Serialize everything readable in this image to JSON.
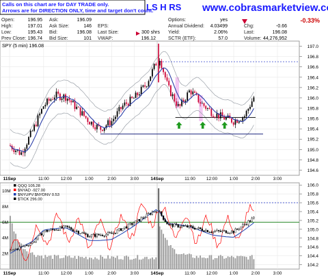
{
  "header": {
    "notice_line1": "Calls on this chart are for DAY TRADE only.",
    "notice_line2": "Arrows are for DIRECTION ONLY, time and target don't count.",
    "ticker_fragment": "LS H RS",
    "site_url": "www.cobrasmarketview.com",
    "change_percent": "-0.33%",
    "quote_fields": [
      {
        "label": "Open:",
        "value": "196.95"
      },
      {
        "label": "High:",
        "value": "197.01"
      },
      {
        "label": "Low:",
        "value": "195.43"
      },
      {
        "label": "Prev Close:",
        "value": "196.74"
      },
      {
        "label": "Ask:",
        "value": "196.09"
      },
      {
        "label": "Ask Size:",
        "value": "146"
      },
      {
        "label": "Bid:",
        "value": "196.08"
      },
      {
        "label": "Bid Size:",
        "value": "101"
      },
      {
        "label": "EPS:",
        "value": ""
      },
      {
        "label": "Last Size:",
        "value": "300 shrs"
      },
      {
        "label": "VWAP:",
        "value": "196.12"
      },
      {
        "label": "Options:",
        "value": "yes"
      },
      {
        "label": "Annual Dividend:",
        "value": "4.03499"
      },
      {
        "label": "Yield:",
        "value": "2.06%"
      },
      {
        "label": "SCTR (ETF):",
        "value": "57.0"
      },
      {
        "label": "Chg:",
        "value": "-0.66"
      },
      {
        "label": "Last:",
        "value": "196.08"
      },
      {
        "label": "Volume:",
        "value": "44,276,952"
      }
    ]
  },
  "colors": {
    "up_candle": "#000000",
    "down_candle": "#cc0033",
    "ma_line": "#2b3ea8",
    "band_line": "#9aa0a8",
    "support_line": "#1a237e",
    "resistance_dash": "#3344cc",
    "highlight": "#f2c6f2",
    "arrow": "#1e9a1e",
    "qqq_line": "#000000",
    "nyad_line": "#ff0000",
    "nyup_line": "#1a3eb0",
    "ref_line": "#2e8b2e",
    "volume_bar": "#9a9a9a",
    "red_text": "#cc0000"
  },
  "chart_data": [
    {
      "type": "line",
      "title": "SPY (5 min) 196.08",
      "x_tick_labels": [
        "11Sep",
        "11:00",
        "12:00",
        "1:00",
        "2:00",
        "3:00",
        "14Sep",
        "11:00",
        "12:00",
        "1:00",
        "2:00",
        "3:00"
      ],
      "y_tick_labels": [
        "194.6",
        "194.8",
        "195.0",
        "195.2",
        "195.4",
        "195.6",
        "195.8",
        "196.0",
        "196.2",
        "196.4",
        "196.6",
        "196.8",
        "197.0"
      ],
      "ylim": [
        194.5,
        197.1
      ],
      "support_level": 195.3,
      "resistance_level": 196.7,
      "arrow_times": [
        "14Sep 10:30",
        "14Sep 11:35",
        "14Sep 12:35"
      ],
      "close_series": [
        {
          "t": "11Sep 09:30",
          "v": 195.08
        },
        {
          "t": "11Sep 10:00",
          "v": 194.92
        },
        {
          "t": "11Sep 10:30",
          "v": 195.35
        },
        {
          "t": "11Sep 11:00",
          "v": 195.85
        },
        {
          "t": "11Sep 11:30",
          "v": 196.05
        },
        {
          "t": "11Sep 12:00",
          "v": 196.02
        },
        {
          "t": "11Sep 12:30",
          "v": 195.78
        },
        {
          "t": "11Sep 13:00",
          "v": 195.55
        },
        {
          "t": "11Sep 13:30",
          "v": 195.4
        },
        {
          "t": "11Sep 14:00",
          "v": 195.55
        },
        {
          "t": "11Sep 14:30",
          "v": 195.85
        },
        {
          "t": "11Sep 15:00",
          "v": 196.0
        },
        {
          "t": "11Sep 15:30",
          "v": 196.25
        },
        {
          "t": "11Sep 16:00",
          "v": 196.72
        },
        {
          "t": "14Sep 09:30",
          "v": 196.95
        },
        {
          "t": "14Sep 10:00",
          "v": 196.2
        },
        {
          "t": "14Sep 10:30",
          "v": 195.8
        },
        {
          "t": "14Sep 11:00",
          "v": 196.15
        },
        {
          "t": "14Sep 11:30",
          "v": 195.9
        },
        {
          "t": "14Sep 12:00",
          "v": 195.72
        },
        {
          "t": "14Sep 12:30",
          "v": 195.62
        },
        {
          "t": "14Sep 13:00",
          "v": 195.55
        },
        {
          "t": "14Sep 13:30",
          "v": 195.65
        },
        {
          "t": "14Sep 14:00",
          "v": 196.08
        }
      ]
    },
    {
      "type": "line",
      "legend": [
        "QQQ 105.28",
        "$NYAD -927.00",
        "$NYUPV:$NYDNV 0.53",
        "$TICK 296.00"
      ],
      "x_tick_labels": [
        "11Sep",
        "11:00",
        "12:00",
        "1:00",
        "2:00",
        "3:00",
        "14Sep",
        "11:00",
        "12:00",
        "1:00",
        "2:00",
        "3:00"
      ],
      "y_tick_labels_right": [
        "104.2",
        "104.4",
        "104.6",
        "104.8",
        "105.0",
        "105.2",
        "105.4",
        "105.6",
        "105.8",
        "106.0"
      ],
      "y_tick_labels_left": [
        "2M",
        "4M",
        "6M",
        "8M",
        "10M"
      ],
      "ylim": [
        104.1,
        106.05
      ],
      "volume_ylim": [
        0,
        11
      ],
      "reference_level": 105.16,
      "resistance_level": 105.6,
      "qqq_close_series": [
        {
          "t": "11Sep 09:30",
          "v": 104.5
        },
        {
          "t": "11Sep 10:30",
          "v": 104.7
        },
        {
          "t": "11Sep 11:00",
          "v": 104.95
        },
        {
          "t": "11Sep 12:00",
          "v": 105.05
        },
        {
          "t": "11Sep 13:00",
          "v": 104.85
        },
        {
          "t": "11Sep 14:00",
          "v": 104.9
        },
        {
          "t": "11Sep 15:00",
          "v": 105.15
        },
        {
          "t": "11Sep 16:00",
          "v": 105.45
        },
        {
          "t": "14Sep 10:00",
          "v": 105.1
        },
        {
          "t": "14Sep 11:00",
          "v": 105.05
        },
        {
          "t": "14Sep 12:00",
          "v": 104.95
        },
        {
          "t": "14Sep 13:00",
          "v": 104.95
        },
        {
          "t": "14Sep 14:00",
          "v": 105.28
        }
      ]
    }
  ]
}
